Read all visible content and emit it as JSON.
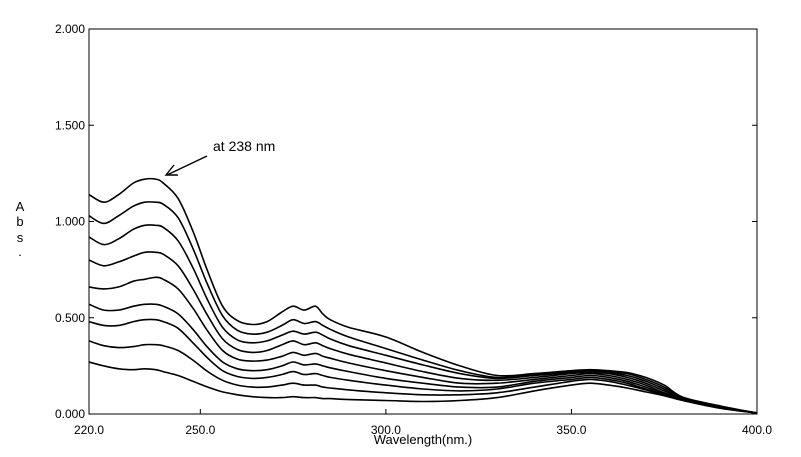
{
  "chart_data": {
    "type": "line",
    "xlabel": "Wavelength(nm.)",
    "ylabel_letters": [
      "A",
      "b",
      "s",
      "."
    ],
    "xlim": [
      220,
      400
    ],
    "ylim": [
      0,
      2
    ],
    "x_ticks": [
      220,
      250,
      300,
      350,
      400
    ],
    "x_tick_labels": [
      "220.0",
      "250.0",
      "300.0",
      "350.0",
      "400.0"
    ],
    "y_ticks": [
      0,
      0.5,
      1,
      1.5,
      2
    ],
    "y_tick_labels": [
      "0.000",
      "0.500",
      "1.000",
      "1.500",
      "2.000"
    ],
    "grid": false,
    "line_color": "#000000",
    "annotation": {
      "text": "at 238 nm",
      "x": 238,
      "y": 1.22
    },
    "x": [
      220,
      224,
      228,
      232,
      235,
      238,
      240,
      244,
      248,
      252,
      256,
      260,
      264,
      268,
      272,
      275,
      278,
      281,
      283,
      285,
      290,
      300,
      310,
      320,
      330,
      340,
      350,
      355,
      360,
      365,
      370,
      375,
      380,
      390,
      400
    ],
    "series": [
      {
        "values": [
          0.27,
          0.25,
          0.235,
          0.23,
          0.235,
          0.23,
          0.22,
          0.2,
          0.17,
          0.14,
          0.115,
          0.1,
          0.09,
          0.085,
          0.085,
          0.09,
          0.085,
          0.085,
          0.08,
          0.08,
          0.075,
          0.07,
          0.065,
          0.07,
          0.085,
          0.12,
          0.15,
          0.16,
          0.15,
          0.135,
          0.115,
          0.095,
          0.07,
          0.03,
          0.005
        ]
      },
      {
        "values": [
          0.38,
          0.355,
          0.345,
          0.35,
          0.36,
          0.36,
          0.355,
          0.33,
          0.28,
          0.22,
          0.175,
          0.15,
          0.14,
          0.14,
          0.15,
          0.16,
          0.15,
          0.15,
          0.14,
          0.135,
          0.125,
          0.11,
          0.1,
          0.1,
          0.11,
          0.14,
          0.17,
          0.18,
          0.17,
          0.15,
          0.125,
          0.1,
          0.072,
          0.032,
          0.005
        ]
      },
      {
        "values": [
          0.48,
          0.46,
          0.46,
          0.48,
          0.49,
          0.49,
          0.48,
          0.445,
          0.37,
          0.29,
          0.225,
          0.195,
          0.185,
          0.19,
          0.205,
          0.22,
          0.205,
          0.21,
          0.2,
          0.19,
          0.175,
          0.15,
          0.13,
          0.12,
          0.13,
          0.16,
          0.18,
          0.19,
          0.18,
          0.16,
          0.13,
          0.1,
          0.074,
          0.034,
          0.005
        ]
      },
      {
        "values": [
          0.57,
          0.54,
          0.54,
          0.56,
          0.57,
          0.57,
          0.56,
          0.52,
          0.44,
          0.345,
          0.27,
          0.235,
          0.225,
          0.23,
          0.25,
          0.27,
          0.255,
          0.26,
          0.25,
          0.24,
          0.22,
          0.185,
          0.16,
          0.14,
          0.14,
          0.17,
          0.19,
          0.2,
          0.19,
          0.17,
          0.14,
          0.105,
          0.076,
          0.035,
          0.005
        ]
      },
      {
        "values": [
          0.66,
          0.65,
          0.66,
          0.69,
          0.7,
          0.71,
          0.7,
          0.65,
          0.55,
          0.43,
          0.33,
          0.285,
          0.275,
          0.28,
          0.3,
          0.32,
          0.305,
          0.315,
          0.3,
          0.29,
          0.265,
          0.225,
          0.19,
          0.16,
          0.16,
          0.18,
          0.2,
          0.21,
          0.2,
          0.18,
          0.15,
          0.11,
          0.078,
          0.036,
          0.005
        ]
      },
      {
        "values": [
          0.8,
          0.77,
          0.79,
          0.82,
          0.84,
          0.84,
          0.83,
          0.77,
          0.65,
          0.51,
          0.39,
          0.335,
          0.32,
          0.33,
          0.36,
          0.38,
          0.36,
          0.37,
          0.355,
          0.34,
          0.31,
          0.265,
          0.22,
          0.185,
          0.175,
          0.19,
          0.21,
          0.215,
          0.21,
          0.19,
          0.16,
          0.12,
          0.08,
          0.037,
          0.005
        ]
      },
      {
        "values": [
          0.92,
          0.88,
          0.91,
          0.96,
          0.98,
          0.98,
          0.97,
          0.9,
          0.76,
          0.59,
          0.45,
          0.385,
          0.37,
          0.38,
          0.41,
          0.43,
          0.415,
          0.425,
          0.41,
          0.39,
          0.355,
          0.305,
          0.255,
          0.21,
          0.185,
          0.2,
          0.215,
          0.22,
          0.215,
          0.2,
          0.17,
          0.13,
          0.082,
          0.038,
          0.005
        ]
      },
      {
        "values": [
          1.03,
          0.99,
          1.03,
          1.08,
          1.1,
          1.1,
          1.09,
          1.02,
          0.86,
          0.67,
          0.51,
          0.435,
          0.415,
          0.425,
          0.46,
          0.49,
          0.47,
          0.48,
          0.46,
          0.44,
          0.4,
          0.34,
          0.28,
          0.225,
          0.19,
          0.205,
          0.22,
          0.225,
          0.22,
          0.21,
          0.18,
          0.14,
          0.085,
          0.04,
          0.005
        ]
      },
      {
        "values": [
          1.14,
          1.1,
          1.14,
          1.2,
          1.22,
          1.22,
          1.2,
          1.12,
          0.95,
          0.74,
          0.56,
          0.485,
          0.465,
          0.48,
          0.53,
          0.56,
          0.54,
          0.56,
          0.52,
          0.49,
          0.45,
          0.4,
          0.32,
          0.25,
          0.2,
          0.21,
          0.225,
          0.23,
          0.225,
          0.215,
          0.19,
          0.15,
          0.088,
          0.042,
          0.005
        ]
      }
    ]
  }
}
